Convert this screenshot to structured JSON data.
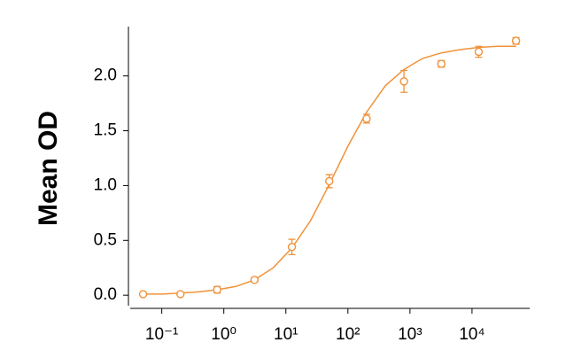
{
  "chart_data": {
    "type": "scatter",
    "ylabel": "Mean OD",
    "xscale": "log",
    "color": "#f0923a",
    "x": [
      0.05,
      0.2,
      0.78,
      3.125,
      12.5,
      50,
      200,
      800,
      3200,
      12800,
      51200
    ],
    "values": [
      0.01,
      0.01,
      0.05,
      0.14,
      0.44,
      1.04,
      1.61,
      1.95,
      2.11,
      2.22,
      2.32
    ],
    "errors": [
      0.01,
      0.01,
      0.03,
      0.02,
      0.07,
      0.06,
      0.04,
      0.1,
      0.03,
      0.05,
      0.03
    ],
    "fit": {
      "x": [
        0.05,
        0.1,
        0.2,
        0.39,
        0.78,
        1.56,
        3.125,
        6.25,
        12.5,
        25,
        50,
        100,
        200,
        400,
        800,
        1600,
        3200,
        6400,
        12800,
        25600,
        51200
      ],
      "values": [
        0.01,
        0.01,
        0.02,
        0.03,
        0.05,
        0.08,
        0.14,
        0.25,
        0.43,
        0.68,
        1.01,
        1.36,
        1.67,
        1.91,
        2.06,
        2.16,
        2.21,
        2.24,
        2.26,
        2.27,
        2.27
      ]
    },
    "xlim": [
      0.031,
      85000
    ],
    "xticks": [
      {
        "value": 0.1,
        "label": "10⁻¹"
      },
      {
        "value": 1,
        "label": "10⁰"
      },
      {
        "value": 10,
        "label": "10¹"
      },
      {
        "value": 100,
        "label": "10²"
      },
      {
        "value": 1000,
        "label": "10³"
      },
      {
        "value": 10000,
        "label": "10⁴"
      }
    ],
    "ylim": [
      -0.12,
      2.45
    ],
    "yticks": [
      {
        "value": 0,
        "label": "0.0"
      },
      0.5,
      {
        "value": 1,
        "label": "1.0"
      },
      1.5,
      {
        "value": 2,
        "label": "2.0"
      }
    ]
  }
}
